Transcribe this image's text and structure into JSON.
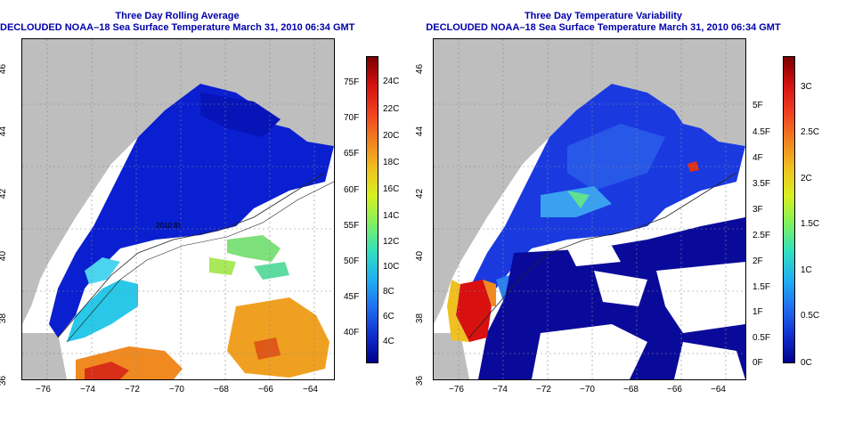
{
  "left_panel": {
    "title_line1": "Three Day Rolling Average",
    "title_line2": "DECLOUDED NOAA–18 Sea Surface Temperature March 31, 2010 06:34 GMT",
    "map_label": "2010 81",
    "colorbar": {
      "fahrenheit_labels": [
        "75F",
        "70F",
        "65F",
        "60F",
        "55F",
        "50F",
        "45F",
        "40F"
      ],
      "celsius_labels": [
        "24C",
        "22C",
        "20C",
        "18C",
        "16C",
        "14C",
        "12C",
        "10C",
        "8C",
        "6C",
        "4C"
      ]
    }
  },
  "right_panel": {
    "title_line1": "Three Day Temperature Variability",
    "title_line2": "DECLOUDED NOAA–18 Sea Surface Temperature March 31, 2010 06:34 GMT",
    "colorbar": {
      "fahrenheit_labels": [
        "5F",
        "4.5F",
        "4F",
        "3.5F",
        "3F",
        "2.5F",
        "2F",
        "1.5F",
        "1F",
        "0.5F",
        "0F"
      ],
      "celsius_labels": [
        "3C",
        "2.5C",
        "2C",
        "1.5C",
        "1C",
        "0.5C",
        "0C"
      ]
    }
  },
  "axes": {
    "longitude_labels": [
      "−76",
      "−74",
      "−72",
      "−70",
      "−68",
      "−66",
      "−64"
    ],
    "latitude_labels": [
      "46",
      "44",
      "42",
      "40",
      "38",
      "36"
    ]
  },
  "colors": {
    "title": "#0000aa",
    "land": "#bebebe",
    "ocean_cold": "#0a1fd0",
    "ocean_mid": "#29c8e8",
    "ocean_warm": "#f0a020",
    "hot": "#c81010"
  }
}
